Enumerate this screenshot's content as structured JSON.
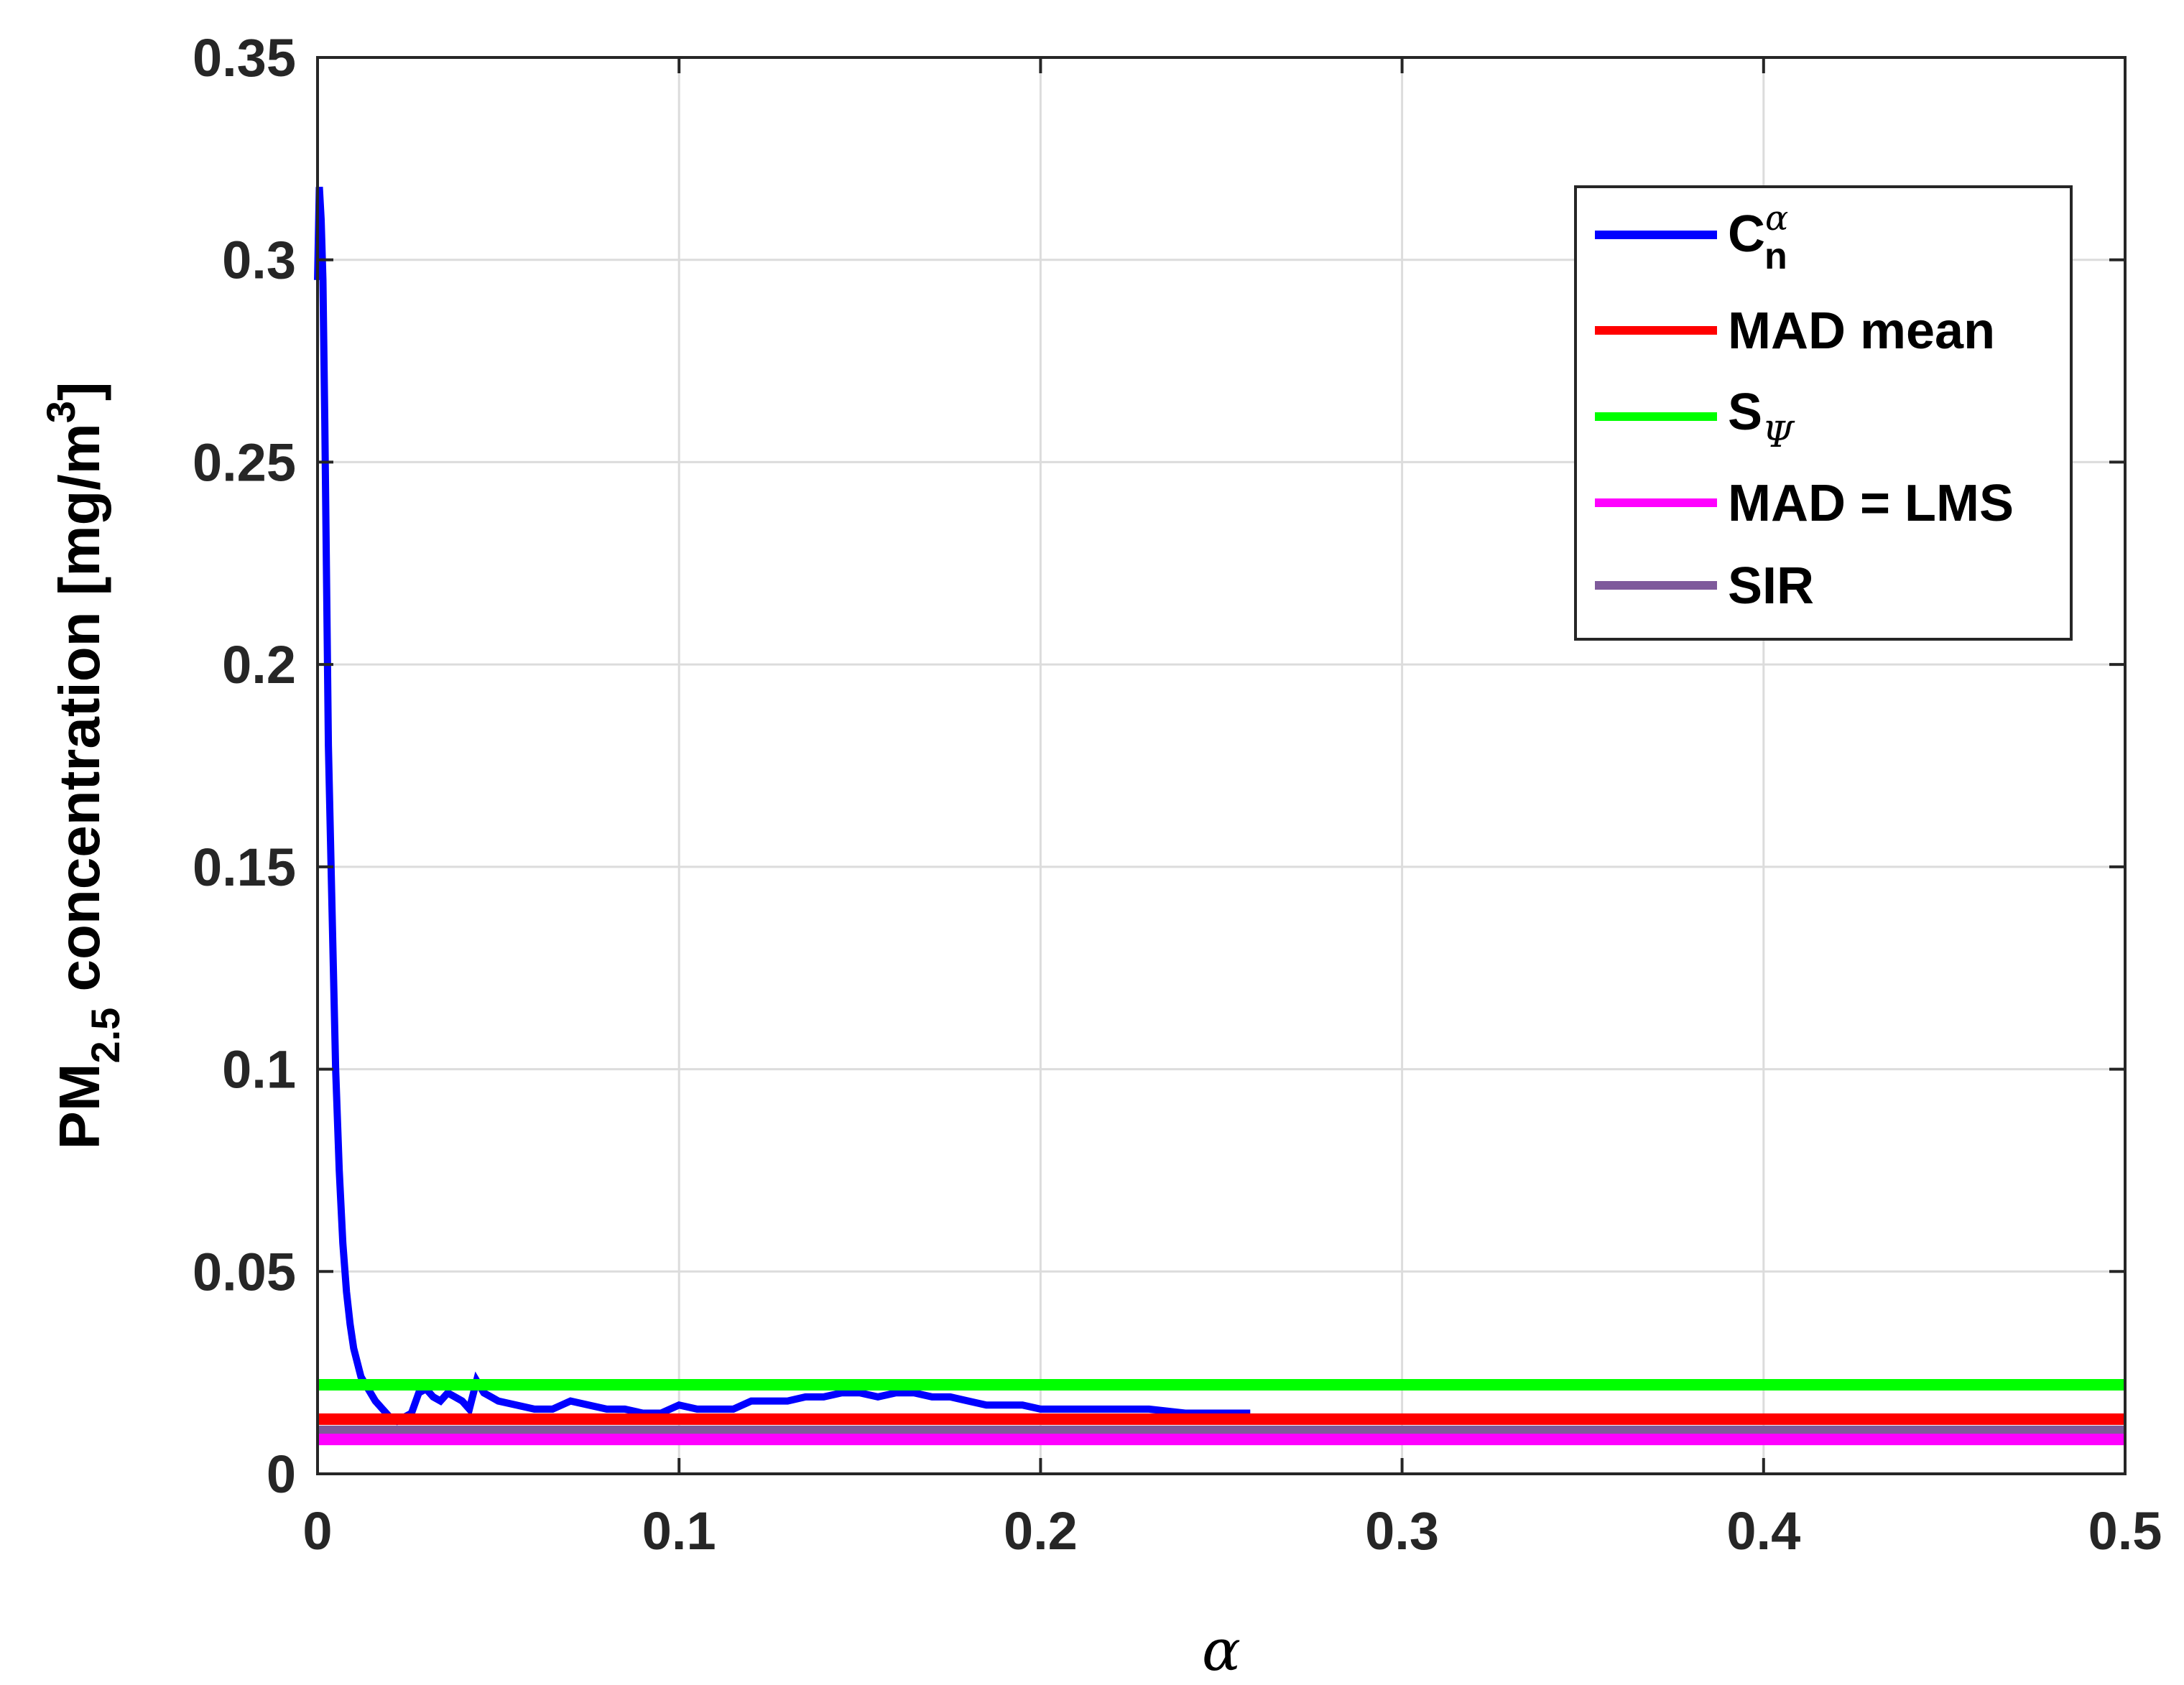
{
  "chart_data": {
    "type": "line",
    "xlabel": "α",
    "ylabel": {
      "prefix": "PM",
      "subscript": "2.5",
      "text": " concentration [mg/m",
      "superscript": "3",
      "suffix": "]"
    },
    "xlim": [
      0,
      0.5
    ],
    "ylim": [
      0,
      0.35
    ],
    "xticks": [
      0,
      0.1,
      0.2,
      0.3,
      0.4,
      0.5
    ],
    "xtick_labels": [
      "0",
      "0.1",
      "0.2",
      "0.3",
      "0.4",
      "0.5"
    ],
    "yticks": [
      0,
      0.05,
      0.1,
      0.15,
      0.2,
      0.25,
      0.3,
      0.35
    ],
    "ytick_labels": [
      "0",
      "0.05",
      "0.1",
      "0.15",
      "0.2",
      "0.25",
      "0.3",
      "0.35"
    ],
    "grid": true,
    "legend_position": "top-right",
    "series": [
      {
        "name": "C",
        "name_sub": "n",
        "name_sup": "α",
        "color": "#0000ff",
        "kind": "curve",
        "x": [
          0,
          0.0005,
          0.001,
          0.0015,
          0.002,
          0.003,
          0.004,
          0.005,
          0.006,
          0.007,
          0.008,
          0.009,
          0.01,
          0.012,
          0.014,
          0.016,
          0.018,
          0.02,
          0.022,
          0.024,
          0.026,
          0.028,
          0.03,
          0.032,
          0.034,
          0.036,
          0.038,
          0.04,
          0.042,
          0.044,
          0.046,
          0.048,
          0.05,
          0.055,
          0.06,
          0.065,
          0.07,
          0.075,
          0.08,
          0.085,
          0.09,
          0.095,
          0.1,
          0.105,
          0.11,
          0.115,
          0.12,
          0.125,
          0.13,
          0.135,
          0.14,
          0.145,
          0.15,
          0.155,
          0.16,
          0.165,
          0.17,
          0.175,
          0.18,
          0.185,
          0.19,
          0.195,
          0.2,
          0.21,
          0.22,
          0.23,
          0.24,
          0.25,
          0.258
        ],
        "y": [
          0.295,
          0.318,
          0.31,
          0.295,
          0.26,
          0.18,
          0.14,
          0.1,
          0.075,
          0.057,
          0.045,
          0.037,
          0.031,
          0.024,
          0.021,
          0.018,
          0.016,
          0.014,
          0.013,
          0.014,
          0.015,
          0.02,
          0.021,
          0.019,
          0.018,
          0.02,
          0.019,
          0.018,
          0.016,
          0.023,
          0.02,
          0.019,
          0.018,
          0.017,
          0.016,
          0.016,
          0.018,
          0.017,
          0.016,
          0.016,
          0.015,
          0.015,
          0.017,
          0.016,
          0.016,
          0.016,
          0.018,
          0.018,
          0.018,
          0.019,
          0.019,
          0.02,
          0.02,
          0.019,
          0.02,
          0.02,
          0.019,
          0.019,
          0.018,
          0.017,
          0.017,
          0.017,
          0.016,
          0.016,
          0.016,
          0.016,
          0.015,
          0.015,
          0.015
        ]
      },
      {
        "name": "MAD mean",
        "color": "#ff0000",
        "kind": "hline",
        "value": 0.0135
      },
      {
        "name": "S",
        "name_sub": "Ψ",
        "color": "#00ff00",
        "kind": "hline",
        "value": 0.022
      },
      {
        "name": "MAD = LMS",
        "color": "#ff00ff",
        "kind": "hline",
        "value": 0.0085
      },
      {
        "name": "SIR",
        "color": "#7e5a9b",
        "kind": "hline",
        "value": 0.0105
      }
    ]
  }
}
